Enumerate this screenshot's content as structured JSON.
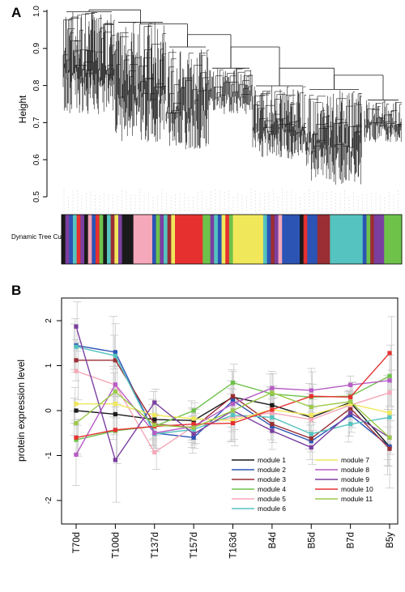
{
  "panel_a": {
    "letter": "A",
    "ylabel": "Height",
    "ticks": [
      "0.5",
      "0.6",
      "0.7",
      "0.8",
      "0.9",
      "1.0"
    ],
    "colorbar_label": "Dynamic Tree Cut",
    "colorbar_segments": [
      [
        "#1a1a1a",
        1.5
      ],
      [
        "#7b3fa0",
        1.5
      ],
      [
        "#2c54b5",
        1.5
      ],
      [
        "#55c3bf",
        1.5
      ],
      [
        "#e63030",
        1.5
      ],
      [
        "#7b3fa0",
        1.5
      ],
      [
        "#1a1a1a",
        1.5
      ],
      [
        "#f2a0b4",
        1.5
      ],
      [
        "#2c54b5",
        1.5
      ],
      [
        "#e63030",
        1.5
      ],
      [
        "#6ec24a",
        1.5
      ],
      [
        "#1a1a1a",
        1.5
      ],
      [
        "#55c3bf",
        1.5
      ],
      [
        "#9a2e34",
        1.5
      ],
      [
        "#f0e85a",
        1.5
      ],
      [
        "#7b3fa0",
        1.5
      ],
      [
        "#1a1a1a",
        4.5
      ],
      [
        "#f5a8b9",
        7.5
      ],
      [
        "#2c54b5",
        1.5
      ],
      [
        "#6ec24a",
        1.5
      ],
      [
        "#7b3fa0",
        1.5
      ],
      [
        "#55c3bf",
        1.5
      ],
      [
        "#9a2e34",
        1.5
      ],
      [
        "#f0e85a",
        1.5
      ],
      [
        "#e63030",
        11
      ],
      [
        "#6ec24a",
        3
      ],
      [
        "#7b3fa0",
        1.5
      ],
      [
        "#55c3bf",
        1.5
      ],
      [
        "#2c54b5",
        1.5
      ],
      [
        "#f0e85a",
        1.5
      ],
      [
        "#e63030",
        1.5
      ],
      [
        "#6ec24a",
        1.5
      ],
      [
        "#f0e85a",
        12
      ],
      [
        "#55c3bf",
        1.5
      ],
      [
        "#2c54b5",
        1.5
      ],
      [
        "#9a2e34",
        1.5
      ],
      [
        "#7b3fa0",
        1.5
      ],
      [
        "#f5a8b9",
        1.5
      ],
      [
        "#2c54b5",
        7
      ],
      [
        "#1a1a1a",
        1.5
      ],
      [
        "#e63030",
        1.5
      ],
      [
        "#2c54b5",
        4
      ],
      [
        "#9a2e34",
        5
      ],
      [
        "#55c3bf",
        13
      ],
      [
        "#2c54b5",
        1.5
      ],
      [
        "#6ec24a",
        1.5
      ],
      [
        "#9a2e34",
        1.5
      ],
      [
        "#7b3fa0",
        4
      ],
      [
        "#6ec24a",
        7
      ]
    ]
  },
  "panel_b": {
    "letter": "B",
    "ylabel": "protein expression level",
    "ytick_labels": [
      "-2",
      "-1",
      "0",
      "1",
      "2"
    ],
    "legend_left": [
      "module 1",
      "module 2",
      "module 3",
      "module 4",
      "module 5",
      "module 6"
    ],
    "legend_right": [
      "module 7",
      "module 8",
      "module 9",
      "module 10",
      "module 11"
    ]
  },
  "chart_data": {
    "type": "line",
    "ylabel": "protein expression level",
    "xlabel": "",
    "ylim": [
      -2.5,
      2.5
    ],
    "categories": [
      "T70d",
      "T100d",
      "T137d",
      "T157d",
      "T163d",
      "B4d",
      "B5d",
      "B7d",
      "B5y"
    ],
    "series": [
      {
        "name": "module 1",
        "color": "#1a1a1a",
        "values": [
          0.0,
          -0.08,
          -0.2,
          -0.22,
          0.3,
          0.12,
          -0.15,
          0.18,
          -0.8
        ]
      },
      {
        "name": "module 2",
        "color": "#2c54b5",
        "values": [
          1.45,
          1.3,
          -0.5,
          -0.6,
          0.22,
          -0.35,
          -0.68,
          -0.1,
          -0.8
        ]
      },
      {
        "name": "module 3",
        "color": "#9a2e34",
        "values": [
          1.12,
          1.12,
          -0.3,
          -0.38,
          0.32,
          -0.3,
          -0.62,
          0.05,
          -0.85
        ]
      },
      {
        "name": "module 4",
        "color": "#6ec24a",
        "values": [
          -0.65,
          -0.45,
          -0.35,
          0.0,
          0.62,
          0.37,
          0.3,
          0.32,
          0.77
        ]
      },
      {
        "name": "module 5",
        "color": "#f5a8b9",
        "values": [
          0.88,
          0.57,
          -0.93,
          -0.35,
          -0.15,
          -0.05,
          -0.2,
          0.12,
          0.4
        ]
      },
      {
        "name": "module 6",
        "color": "#55c3bf",
        "values": [
          1.42,
          1.22,
          -0.52,
          -0.42,
          -0.1,
          -0.15,
          -0.52,
          -0.3,
          -0.15
        ]
      },
      {
        "name": "module 7",
        "color": "#f0e85a",
        "values": [
          0.15,
          0.15,
          -0.1,
          -0.18,
          -0.22,
          0.02,
          -0.1,
          0.15,
          -0.05
        ]
      },
      {
        "name": "module 8",
        "color": "#b75cc6",
        "values": [
          -0.98,
          0.58,
          -0.5,
          -0.35,
          0.15,
          0.5,
          0.45,
          0.57,
          0.67
        ]
      },
      {
        "name": "module 9",
        "color": "#7b3fa0",
        "values": [
          1.87,
          -1.1,
          0.18,
          -0.52,
          0.0,
          -0.45,
          -0.82,
          -0.05,
          -0.6
        ]
      },
      {
        "name": "module 10",
        "color": "#e63030",
        "values": [
          -0.6,
          -0.43,
          -0.35,
          -0.3,
          -0.28,
          0.02,
          0.32,
          0.3,
          1.28
        ]
      },
      {
        "name": "module 11",
        "color": "#9cc94a",
        "values": [
          -0.28,
          0.42,
          -0.32,
          -0.38,
          0.0,
          0.4,
          0.08,
          0.2,
          -0.6
        ]
      }
    ]
  }
}
